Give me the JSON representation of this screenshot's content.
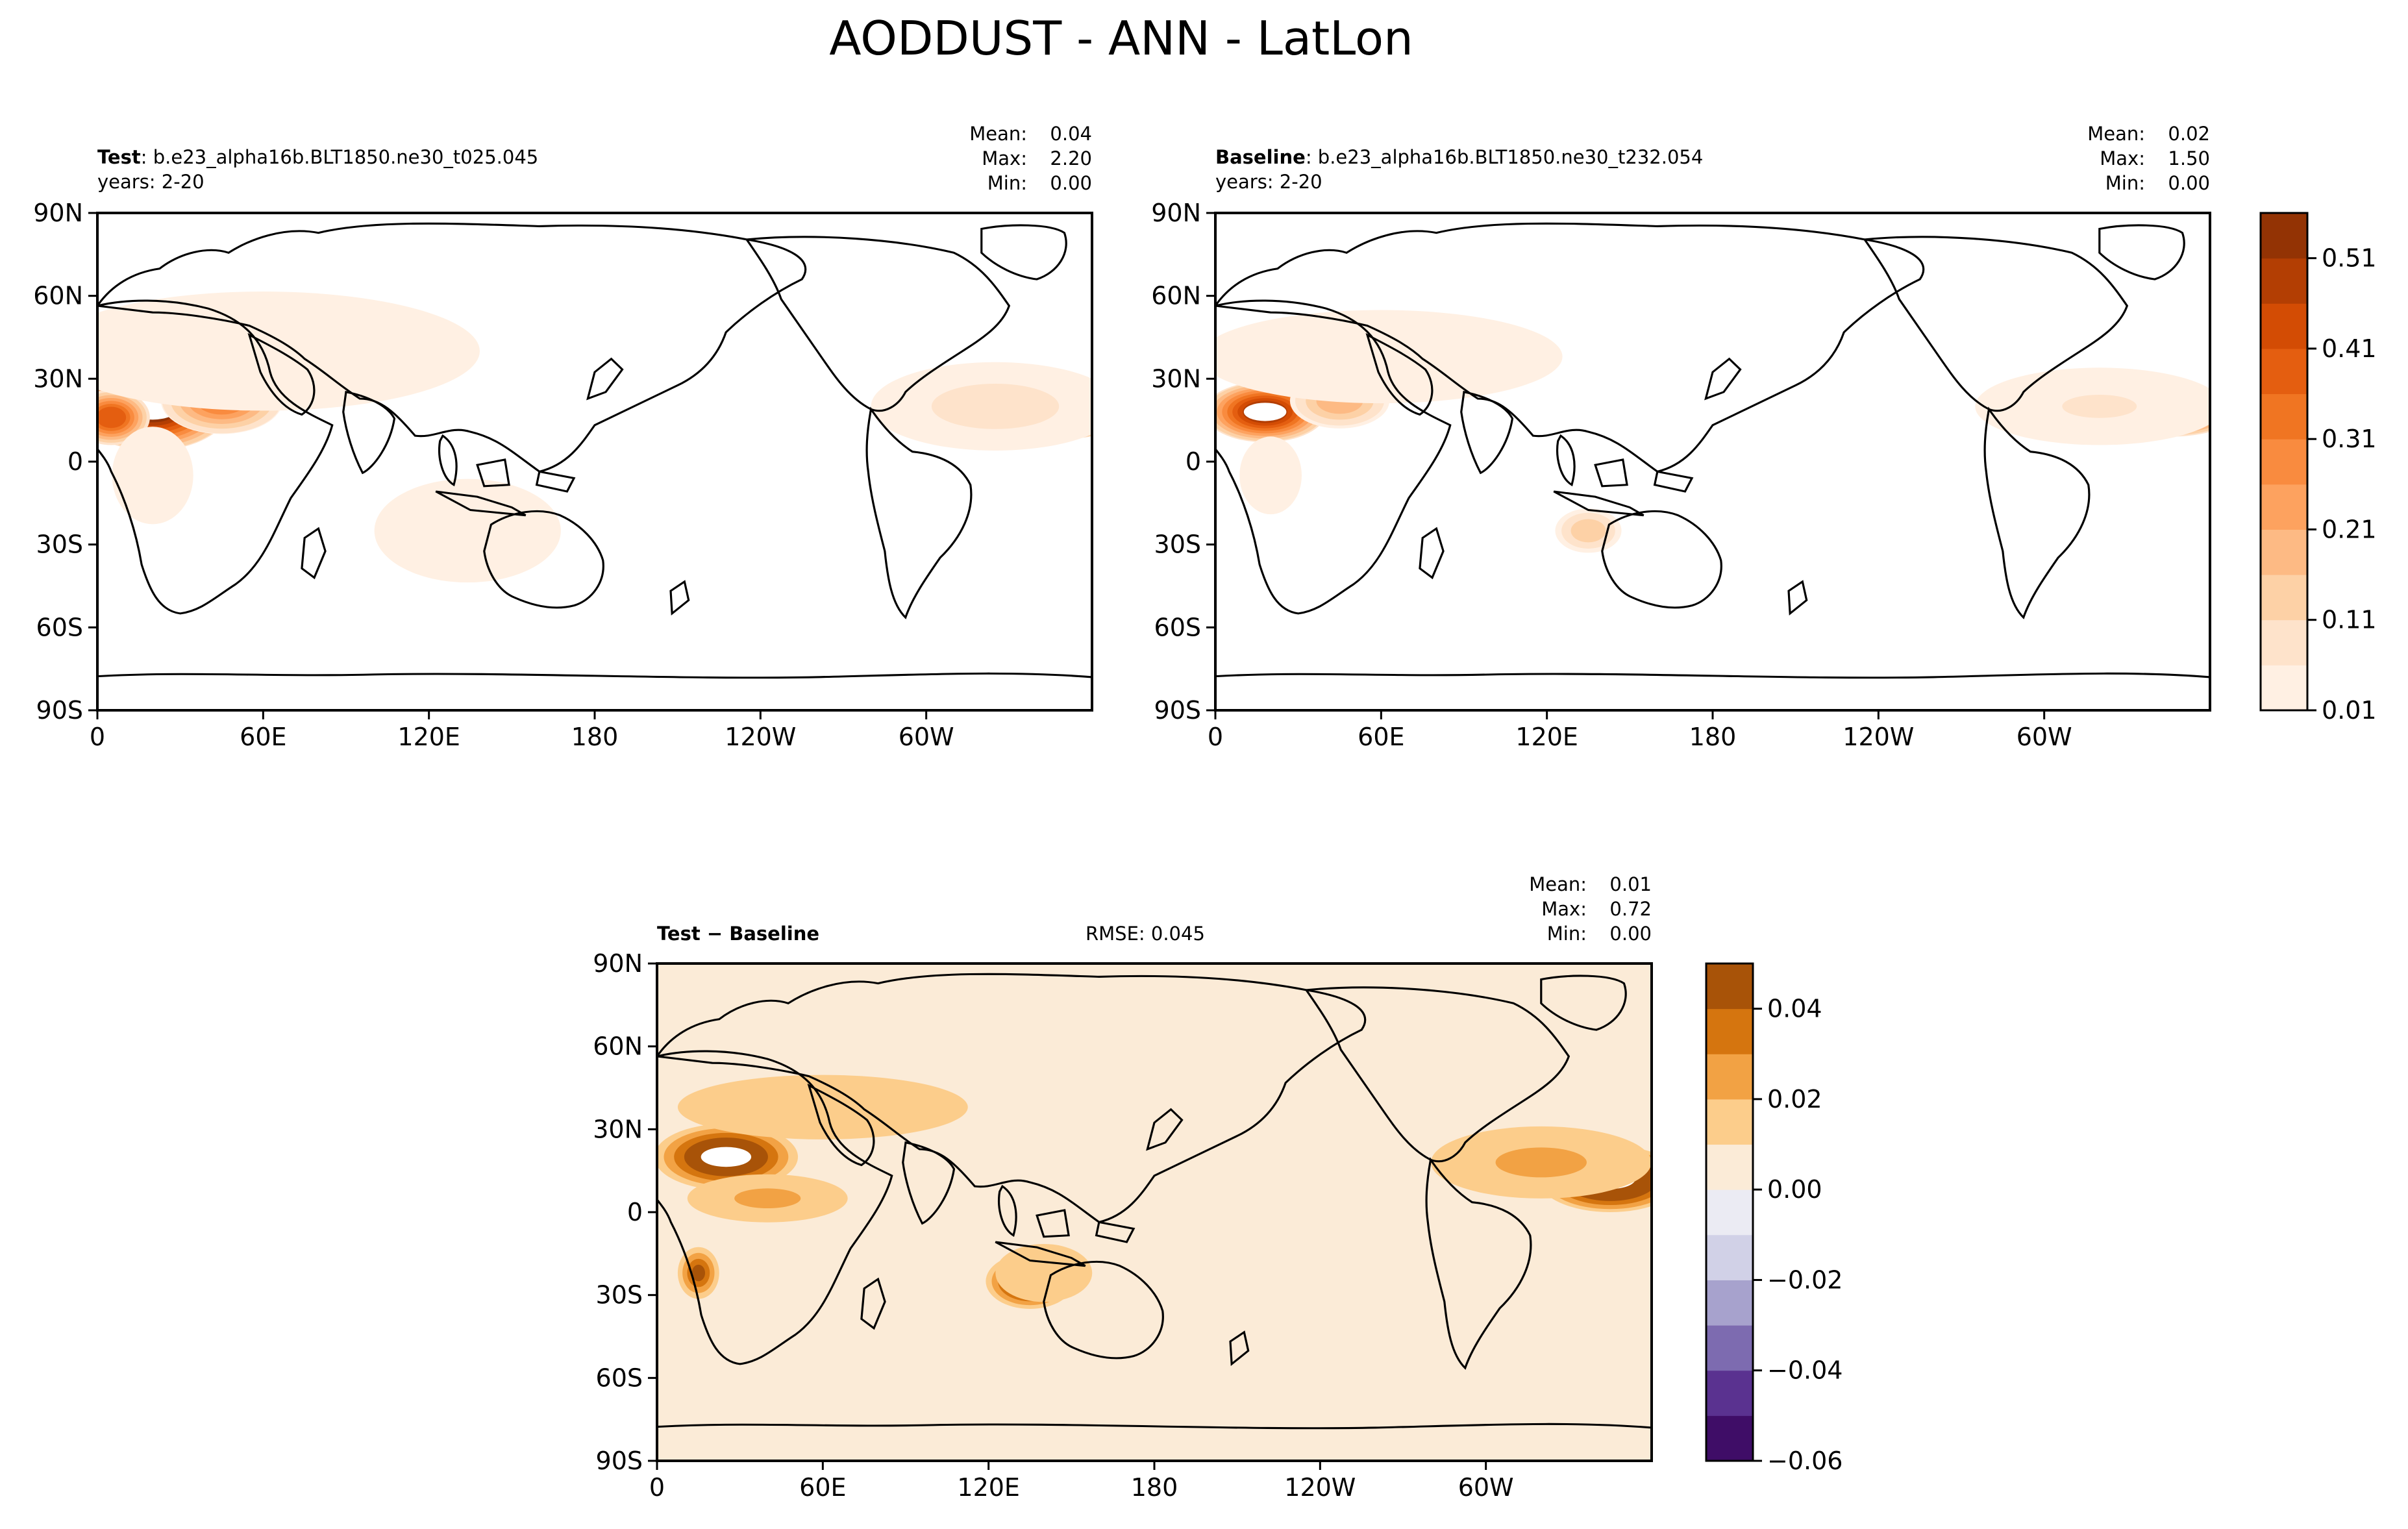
{
  "figure": {
    "title": "AODDUST - ANN - LatLon"
  },
  "colors": {
    "oranges": [
      "#fff0e3",
      "#fee3cb",
      "#fdd1a6",
      "#fdba84",
      "#fda25f",
      "#f98b3f",
      "#f07522",
      "#e45e10",
      "#d34c04",
      "#b33e03",
      "#933304"
    ],
    "diff_levels": [
      "#3f0d67",
      "#5a3290",
      "#7d6bb0",
      "#a7a2cd",
      "#d1d1e7",
      "#ebebf3",
      "#fbebd7",
      "#fccd8b",
      "#f2a244",
      "#d5750f",
      "#a85308"
    ],
    "land_outline": "#000000"
  },
  "chart_data": [
    {
      "type": "heatmap",
      "projection": "plate-carree",
      "center_lon": 180,
      "label_bold": "Test",
      "label_text": ": b.e23_alpha16b.BLT1850.ne30_t025.045",
      "years": "years: 2-20",
      "stats": {
        "mean_label": "Mean:",
        "mean": "0.04",
        "max_label": "Max:",
        "max": "2.20",
        "min_label": "Min:",
        "min": "0.00"
      },
      "x_ticks": [
        "0",
        "60E",
        "120E",
        "180",
        "120W",
        "60W"
      ],
      "y_ticks": [
        "90N",
        "60N",
        "30N",
        "0",
        "30S",
        "60S",
        "90S"
      ],
      "xlim": [
        0,
        360
      ],
      "ylim": [
        -90,
        90
      ],
      "blobs": [
        {
          "lon": 20,
          "lat": 20,
          "rlon": 28,
          "rlat": 16,
          "v": 0.55
        },
        {
          "lon": 5,
          "lat": 16,
          "rlon": 14,
          "rlat": 10,
          "v": 0.4
        },
        {
          "lon": 45,
          "lat": 22,
          "rlon": 22,
          "rlat": 12,
          "v": 0.3
        },
        {
          "lon": 65,
          "lat": 40,
          "rlon": 18,
          "rlat": 7,
          "v": 0.32
        },
        {
          "lon": 90,
          "lat": 40,
          "rlon": 18,
          "rlat": 7,
          "v": 0.28
        },
        {
          "lon": 105,
          "lat": 42,
          "rlon": 16,
          "rlat": 6,
          "v": 0.2
        },
        {
          "lon": 70,
          "lat": 28,
          "rlon": 14,
          "rlat": 8,
          "v": 0.2
        },
        {
          "lon": 60,
          "lat": 40,
          "rlon": 80,
          "rlat": 22,
          "v": 0.05
        },
        {
          "lon": 134,
          "lat": -25,
          "rlon": 15,
          "rlat": 9,
          "v": 0.28
        },
        {
          "lon": 134,
          "lat": -25,
          "rlon": 36,
          "rlat": 20,
          "v": 0.04
        },
        {
          "lon": 346,
          "lat": 18,
          "rlon": 30,
          "rlat": 10,
          "v": 0.55
        },
        {
          "lon": 325,
          "lat": 20,
          "rlon": 45,
          "rlat": 16,
          "v": 0.08
        },
        {
          "lon": 20,
          "lat": -5,
          "rlon": 15,
          "rlat": 18,
          "v": 0.05
        }
      ]
    },
    {
      "type": "heatmap",
      "projection": "plate-carree",
      "center_lon": 180,
      "label_bold": "Baseline",
      "label_text": ": b.e23_alpha16b.BLT1850.ne30_t232.054",
      "years": "years: 2-20",
      "stats": {
        "mean_label": "Mean:",
        "mean": "0.02",
        "max_label": "Max:",
        "max": "1.50",
        "min_label": "Min:",
        "min": "0.00"
      },
      "x_ticks": [
        "0",
        "60E",
        "120E",
        "180",
        "120W",
        "60W"
      ],
      "y_ticks": [
        "90N",
        "60N",
        "30N",
        "0",
        "30S",
        "60S",
        "90S"
      ],
      "xlim": [
        0,
        360
      ],
      "ylim": [
        -90,
        90
      ],
      "blobs": [
        {
          "lon": 18,
          "lat": 18,
          "rlon": 22,
          "rlat": 11,
          "v": 0.5
        },
        {
          "lon": 45,
          "lat": 22,
          "rlon": 18,
          "rlat": 10,
          "v": 0.2
        },
        {
          "lon": 65,
          "lat": 42,
          "rlon": 14,
          "rlat": 6,
          "v": 0.25
        },
        {
          "lon": 90,
          "lat": 38,
          "rlon": 16,
          "rlat": 6,
          "v": 0.18
        },
        {
          "lon": 60,
          "lat": 38,
          "rlon": 70,
          "rlat": 18,
          "v": 0.04
        },
        {
          "lon": 135,
          "lat": -25,
          "rlon": 12,
          "rlat": 8,
          "v": 0.15
        },
        {
          "lon": 345,
          "lat": 17,
          "rlon": 24,
          "rlat": 8,
          "v": 0.45
        },
        {
          "lon": 320,
          "lat": 20,
          "rlon": 45,
          "rlat": 14,
          "v": 0.06
        },
        {
          "lon": 20,
          "lat": -5,
          "rlon": 12,
          "rlat": 15,
          "v": 0.04
        }
      ]
    },
    {
      "type": "heatmap",
      "projection": "plate-carree",
      "center_lon": 180,
      "label_bold": "Test − Baseline",
      "rmse": "RMSE: 0.045",
      "stats": {
        "mean_label": "Mean:",
        "mean": "0.01",
        "max_label": "Max:",
        "max": "0.72",
        "min_label": "Min:",
        "min": "0.00"
      },
      "x_ticks": [
        "0",
        "60E",
        "120E",
        "180",
        "120W",
        "60W"
      ],
      "y_ticks": [
        "90N",
        "60N",
        "30N",
        "0",
        "30S",
        "60S",
        "90S"
      ],
      "xlim": [
        0,
        360
      ],
      "ylim": [
        -90,
        90
      ],
      "background_value": 0.005,
      "blobs": [
        {
          "lon": 25,
          "lat": 20,
          "rlon": 26,
          "rlat": 12,
          "v": 0.06
        },
        {
          "lon": 55,
          "lat": 38,
          "rlon": 28,
          "rlat": 8,
          "v": 0.06
        },
        {
          "lon": 80,
          "lat": 40,
          "rlon": 22,
          "rlat": 7,
          "v": 0.05
        },
        {
          "lon": 60,
          "lat": 38,
          "rlon": 90,
          "rlat": 20,
          "v": 0.015
        },
        {
          "lon": 40,
          "lat": 5,
          "rlon": 40,
          "rlat": 12,
          "v": 0.02
        },
        {
          "lon": 15,
          "lat": -22,
          "rlon": 8,
          "rlat": 10,
          "v": 0.04
        },
        {
          "lon": 135,
          "lat": -25,
          "rlon": 16,
          "rlat": 10,
          "v": 0.06
        },
        {
          "lon": 140,
          "lat": -22,
          "rlon": 30,
          "rlat": 18,
          "v": 0.015
        },
        {
          "lon": 345,
          "lat": 12,
          "rlon": 26,
          "rlat": 12,
          "v": 0.07
        },
        {
          "lon": 320,
          "lat": 18,
          "rlon": 55,
          "rlat": 18,
          "v": 0.02
        }
      ]
    }
  ],
  "colorbars": [
    {
      "ticks": [
        "0.01",
        "0.11",
        "0.21",
        "0.31",
        "0.41",
        "0.51"
      ],
      "tick_values": [
        0.01,
        0.11,
        0.21,
        0.31,
        0.41,
        0.51
      ],
      "range": [
        0.01,
        0.56
      ]
    },
    {
      "ticks": [
        "0.04",
        "0.02",
        "0.00",
        "−0.02",
        "−0.04",
        "−0.06"
      ],
      "tick_values": [
        0.04,
        0.02,
        0.0,
        -0.02,
        -0.04,
        -0.06
      ],
      "range": [
        -0.06,
        0.05
      ]
    }
  ]
}
